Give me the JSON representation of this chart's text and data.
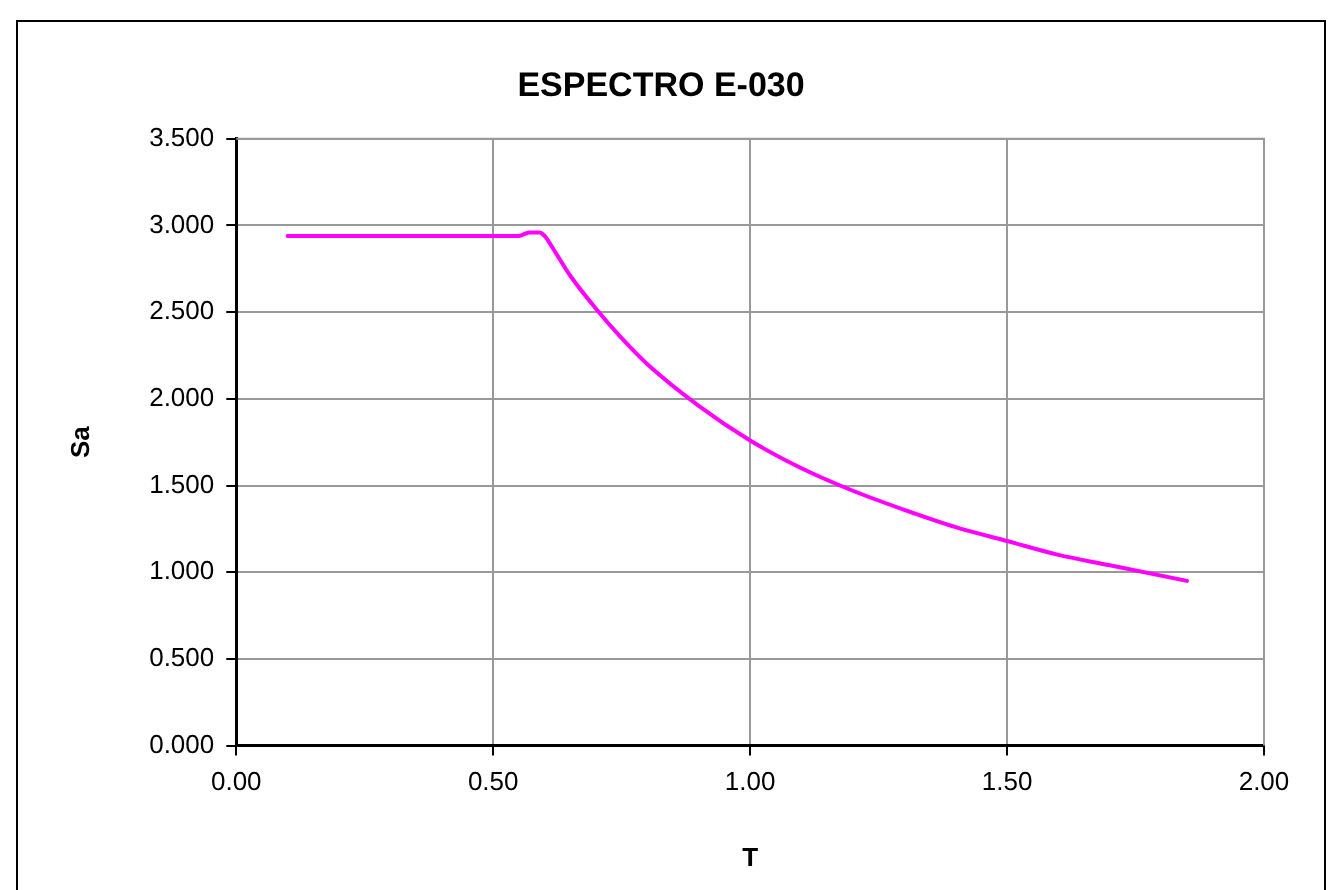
{
  "chart_data": {
    "type": "line",
    "title": "ESPECTRO E-030",
    "xlabel": "T",
    "ylabel": "Sa",
    "x": [
      0.1,
      0.2,
      0.3,
      0.4,
      0.5,
      0.55,
      0.57,
      0.59,
      0.6,
      0.62,
      0.65,
      0.7,
      0.75,
      0.8,
      0.9,
      1.0,
      1.1,
      1.2,
      1.3,
      1.4,
      1.5,
      1.6,
      1.7,
      1.85
    ],
    "series": [
      {
        "color": "#ff00ff",
        "values": [
          2.94,
          2.94,
          2.94,
          2.94,
          2.94,
          2.94,
          2.96,
          2.96,
          2.94,
          2.85,
          2.71,
          2.52,
          2.35,
          2.2,
          1.96,
          1.76,
          1.6,
          1.47,
          1.36,
          1.26,
          1.18,
          1.1,
          1.04,
          0.95
        ]
      }
    ],
    "xlim": [
      0,
      2
    ],
    "xticks": [
      {
        "value": 0,
        "label": "0.00"
      },
      {
        "value": 0.5,
        "label": "0.50"
      },
      {
        "value": 1,
        "label": "1.00"
      },
      {
        "value": 1.5,
        "label": "1.50"
      },
      {
        "value": 2,
        "label": "2.00"
      }
    ],
    "ylim": [
      0,
      3.5
    ],
    "yticks": [
      {
        "value": 0,
        "label": "0.000"
      },
      {
        "value": 0.5,
        "label": "0.500"
      },
      {
        "value": 1,
        "label": "1.000"
      },
      {
        "value": 1.5,
        "label": "1.500"
      },
      {
        "value": 2,
        "label": "2.000"
      },
      {
        "value": 2.5,
        "label": "2.500"
      },
      {
        "value": 3,
        "label": "3.000"
      },
      {
        "value": 3.5,
        "label": "3.500"
      }
    ],
    "grid": true,
    "legend": false,
    "marker": "none",
    "line_style": "solid"
  }
}
